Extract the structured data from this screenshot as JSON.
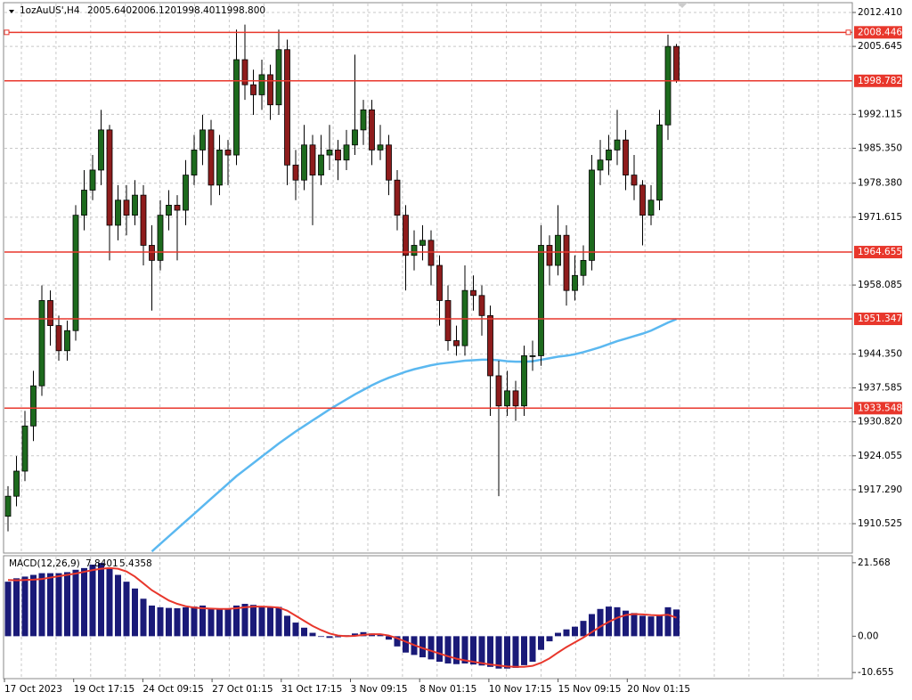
{
  "chart_data": [
    {
      "type": "candlestick",
      "symbol": "1ozAuUS',H4",
      "ohlc_labels": [
        "2005.640",
        "2006.120",
        "1998.401",
        "1998.800"
      ],
      "up_color": "#1d6a1d",
      "down_color": "#8e1c1c",
      "grid": true,
      "ylim": [
        1904.85,
        2014.36
      ],
      "yticks": [
        {
          "value": 2012.41,
          "label": "2012.410"
        },
        2005.645,
        1992.115,
        {
          "value": 1985.35,
          "label": "1985.350"
        },
        {
          "value": 1978.38,
          "label": "1978.380"
        },
        1971.615,
        1958.085,
        {
          "value": 1944.35,
          "label": "1944.350"
        },
        1937.585,
        {
          "value": 1930.82,
          "label": "1930.820"
        },
        1924.055,
        {
          "value": 1917.29,
          "label": "1917.290"
        },
        1910.525
      ],
      "hlines": {
        "color": "#e8372c",
        "values": [
          2008.446,
          1998.782,
          1964.655,
          1951.347,
          1933.548
        ]
      },
      "x_labels": [
        "17 Oct 2023",
        "19 Oct 17:15",
        "24 Oct 09:15",
        "27 Oct 01:15",
        "31 Oct 17:15",
        "3 Nov 09:15",
        "8 Nov 01:15",
        "10 Nov 17:15",
        "15 Nov 09:15",
        "20 Nov 01:15"
      ],
      "candles": [
        [
          1912,
          1918,
          1909,
          1916
        ],
        [
          1916,
          1924,
          1914,
          1921
        ],
        [
          1921,
          1933,
          1919,
          1930
        ],
        [
          1930,
          1941,
          1927,
          1938
        ],
        [
          1938,
          1958,
          1936,
          1955
        ],
        [
          1955,
          1957,
          1946,
          1950
        ],
        [
          1950,
          1952,
          1943,
          1945
        ],
        [
          1945,
          1951,
          1943,
          1949
        ],
        [
          1949,
          1974,
          1947,
          1972
        ],
        [
          1972,
          1981,
          1969,
          1977
        ],
        [
          1977,
          1984,
          1975,
          1981
        ],
        [
          1981,
          1993,
          1978,
          1989
        ],
        [
          1989,
          1990,
          1963,
          1970
        ],
        [
          1970,
          1978,
          1967,
          1975
        ],
        [
          1975,
          1978,
          1968,
          1972
        ],
        [
          1972,
          1979,
          1970,
          1976
        ],
        [
          1976,
          1978,
          1962,
          1966
        ],
        [
          1966,
          1970,
          1953,
          1963
        ],
        [
          1963,
          1975,
          1961,
          1972
        ],
        [
          1972,
          1977,
          1969,
          1974
        ],
        [
          1974,
          1976,
          1963,
          1973
        ],
        [
          1973,
          1983,
          1970,
          1980
        ],
        [
          1980,
          1988,
          1978,
          1985
        ],
        [
          1985,
          1992,
          1982,
          1989
        ],
        [
          1989,
          1991,
          1974,
          1978
        ],
        [
          1978,
          1988,
          1976,
          1985
        ],
        [
          1985,
          1987,
          1978,
          1984
        ],
        [
          1984,
          2009,
          1982,
          2003
        ],
        [
          2003,
          2010,
          1995,
          1998
        ],
        [
          1998,
          2001,
          1992,
          1996
        ],
        [
          1996,
          2003,
          1993,
          2000
        ],
        [
          2000,
          2002,
          1991,
          1994
        ],
        [
          1994,
          2009,
          1992,
          2005
        ],
        [
          2005,
          2007,
          1978,
          1982
        ],
        [
          1982,
          1985,
          1975,
          1979
        ],
        [
          1979,
          1990,
          1977,
          1986
        ],
        [
          1986,
          1988,
          1970,
          1980
        ],
        [
          1980,
          1988,
          1978,
          1984
        ],
        [
          1984,
          1990,
          1981,
          1985
        ],
        [
          1985,
          1987,
          1979,
          1983
        ],
        [
          1983,
          1989,
          1981,
          1986
        ],
        [
          1986,
          2004,
          1984,
          1989
        ],
        [
          1989,
          1995,
          1986,
          1993
        ],
        [
          1993,
          1995,
          1982,
          1985
        ],
        [
          1985,
          1990,
          1983,
          1986
        ],
        [
          1986,
          1988,
          1976,
          1979
        ],
        [
          1979,
          1981,
          1969,
          1972
        ],
        [
          1972,
          1974,
          1957,
          1964
        ],
        [
          1964,
          1969,
          1961,
          1966
        ],
        [
          1966,
          1970,
          1963,
          1967
        ],
        [
          1967,
          1969,
          1958,
          1962
        ],
        [
          1962,
          1964,
          1950,
          1955
        ],
        [
          1955,
          1958,
          1945,
          1947
        ],
        [
          1947,
          1950,
          1944,
          1946
        ],
        [
          1946,
          1962,
          1944,
          1957
        ],
        [
          1957,
          1960,
          1953,
          1956
        ],
        [
          1956,
          1958,
          1948,
          1952
        ],
        [
          1952,
          1954,
          1932,
          1940
        ],
        [
          1940,
          1943,
          1916,
          1934
        ],
        [
          1934,
          1941,
          1932,
          1937
        ],
        [
          1937,
          1939,
          1931,
          1934
        ],
        [
          1934,
          1946,
          1932,
          1944
        ],
        [
          1944,
          1947,
          1941,
          1944
        ],
        [
          1944,
          1970,
          1942,
          1966
        ],
        [
          1966,
          1968,
          1958,
          1962
        ],
        [
          1962,
          1974,
          1960,
          1968
        ],
        [
          1968,
          1970,
          1954,
          1957
        ],
        [
          1957,
          1964,
          1955,
          1960
        ],
        [
          1960,
          1966,
          1958,
          1963
        ],
        [
          1963,
          1984,
          1961,
          1981
        ],
        [
          1981,
          1987,
          1978,
          1983
        ],
        [
          1983,
          1988,
          1980,
          1985
        ],
        [
          1985,
          1993,
          1982,
          1987
        ],
        [
          1987,
          1989,
          1977,
          1980
        ],
        [
          1980,
          1984,
          1975,
          1978
        ],
        [
          1978,
          1979,
          1966,
          1972
        ],
        [
          1972,
          1978,
          1970,
          1975
        ],
        [
          1975,
          1993,
          1973,
          1990
        ],
        [
          1990,
          2008,
          1987,
          2005.64
        ],
        [
          2005.64,
          2006.12,
          1998.401,
          1998.8
        ]
      ],
      "ma": {
        "color": "#5bb8f0",
        "values": [
          null,
          null,
          null,
          null,
          null,
          null,
          null,
          null,
          null,
          null,
          null,
          null,
          null,
          null,
          null,
          null,
          null,
          1905,
          1906.5,
          1908,
          1909.5,
          1911,
          1912.5,
          1914,
          1915.5,
          1917,
          1918.5,
          1920,
          1921.3,
          1922.6,
          1923.9,
          1925.2,
          1926.5,
          1927.7,
          1928.9,
          1930,
          1931.1,
          1932.2,
          1933.3,
          1934.3,
          1935.3,
          1936.3,
          1937.2,
          1938.1,
          1938.9,
          1939.6,
          1940.2,
          1940.8,
          1941.3,
          1941.7,
          1942.1,
          1942.4,
          1942.6,
          1942.8,
          1943,
          1943.1,
          1943.2,
          1943.2,
          1943.1,
          1942.9,
          1942.8,
          1942.8,
          1942.9,
          1943.2,
          1943.5,
          1943.8,
          1944,
          1944.3,
          1944.7,
          1945.2,
          1945.7,
          1946.3,
          1946.9,
          1947.4,
          1947.9,
          1948.4,
          1949,
          1949.8,
          1950.6,
          1951.3
        ]
      }
    },
    {
      "type": "macd",
      "title": "MACD(12,26,9)",
      "ylim": [
        -12.45,
        23.36
      ],
      "yticks": [
        21.568,
        {
          "value": 0,
          "label": "0.00"
        },
        -10.655
      ],
      "series": [
        {
          "kind": "bar",
          "color": "#1a1a78",
          "values": [
            16,
            17,
            17.5,
            18,
            18.5,
            18.5,
            18.5,
            18.8,
            19.5,
            20,
            21,
            21.5,
            20,
            18,
            16,
            14,
            11,
            9,
            8.5,
            8.3,
            8.2,
            8.5,
            8.7,
            9,
            8,
            8,
            8.2,
            9,
            9.5,
            9.2,
            8.8,
            8.5,
            8.6,
            6,
            4,
            2.5,
            1,
            -0.2,
            -0.5,
            -0.3,
            0.3,
            0.8,
            1.2,
            0.8,
            0.6,
            -1,
            -3,
            -4.8,
            -5.5,
            -6.2,
            -6.8,
            -7.5,
            -8,
            -8.2,
            -8,
            -8.3,
            -8.6,
            -9,
            -9.5,
            -9.5,
            -9.3,
            -8.5,
            -7.5,
            -4,
            -1.5,
            1,
            2,
            2.8,
            4.5,
            6.5,
            8,
            8.7,
            8.5,
            7.5,
            6.8,
            6,
            5.8,
            6.3,
            8.5,
            7.8401
          ]
        },
        {
          "kind": "line",
          "color": "#e8372c",
          "values": [
            16.5,
            16.4,
            16.5,
            16.6,
            16.8,
            17.2,
            17.6,
            18,
            18.4,
            18.9,
            19.4,
            19.8,
            20,
            19.8,
            19,
            17.5,
            15.5,
            13.5,
            12,
            10.5,
            9.5,
            8.8,
            8.4,
            8.2,
            8.1,
            8,
            8,
            8.2,
            8.5,
            8.7,
            8.7,
            8.6,
            8.4,
            7.5,
            6,
            4.5,
            3,
            1.8,
            0.8,
            0.2,
            0,
            0.1,
            0.4,
            0.6,
            0.6,
            0.2,
            -0.6,
            -1.6,
            -2.6,
            -3.5,
            -4.3,
            -5.1,
            -5.9,
            -6.6,
            -7.1,
            -7.5,
            -7.9,
            -8.3,
            -8.6,
            -8.9,
            -9,
            -9,
            -8.7,
            -7.8,
            -6.5,
            -4.8,
            -3.2,
            -1.8,
            -0.4,
            1.2,
            2.8,
            4.2,
            5.4,
            6.2,
            6.5,
            6.4,
            6.2,
            6.1,
            6.3,
            5.4358
          ]
        }
      ]
    }
  ]
}
